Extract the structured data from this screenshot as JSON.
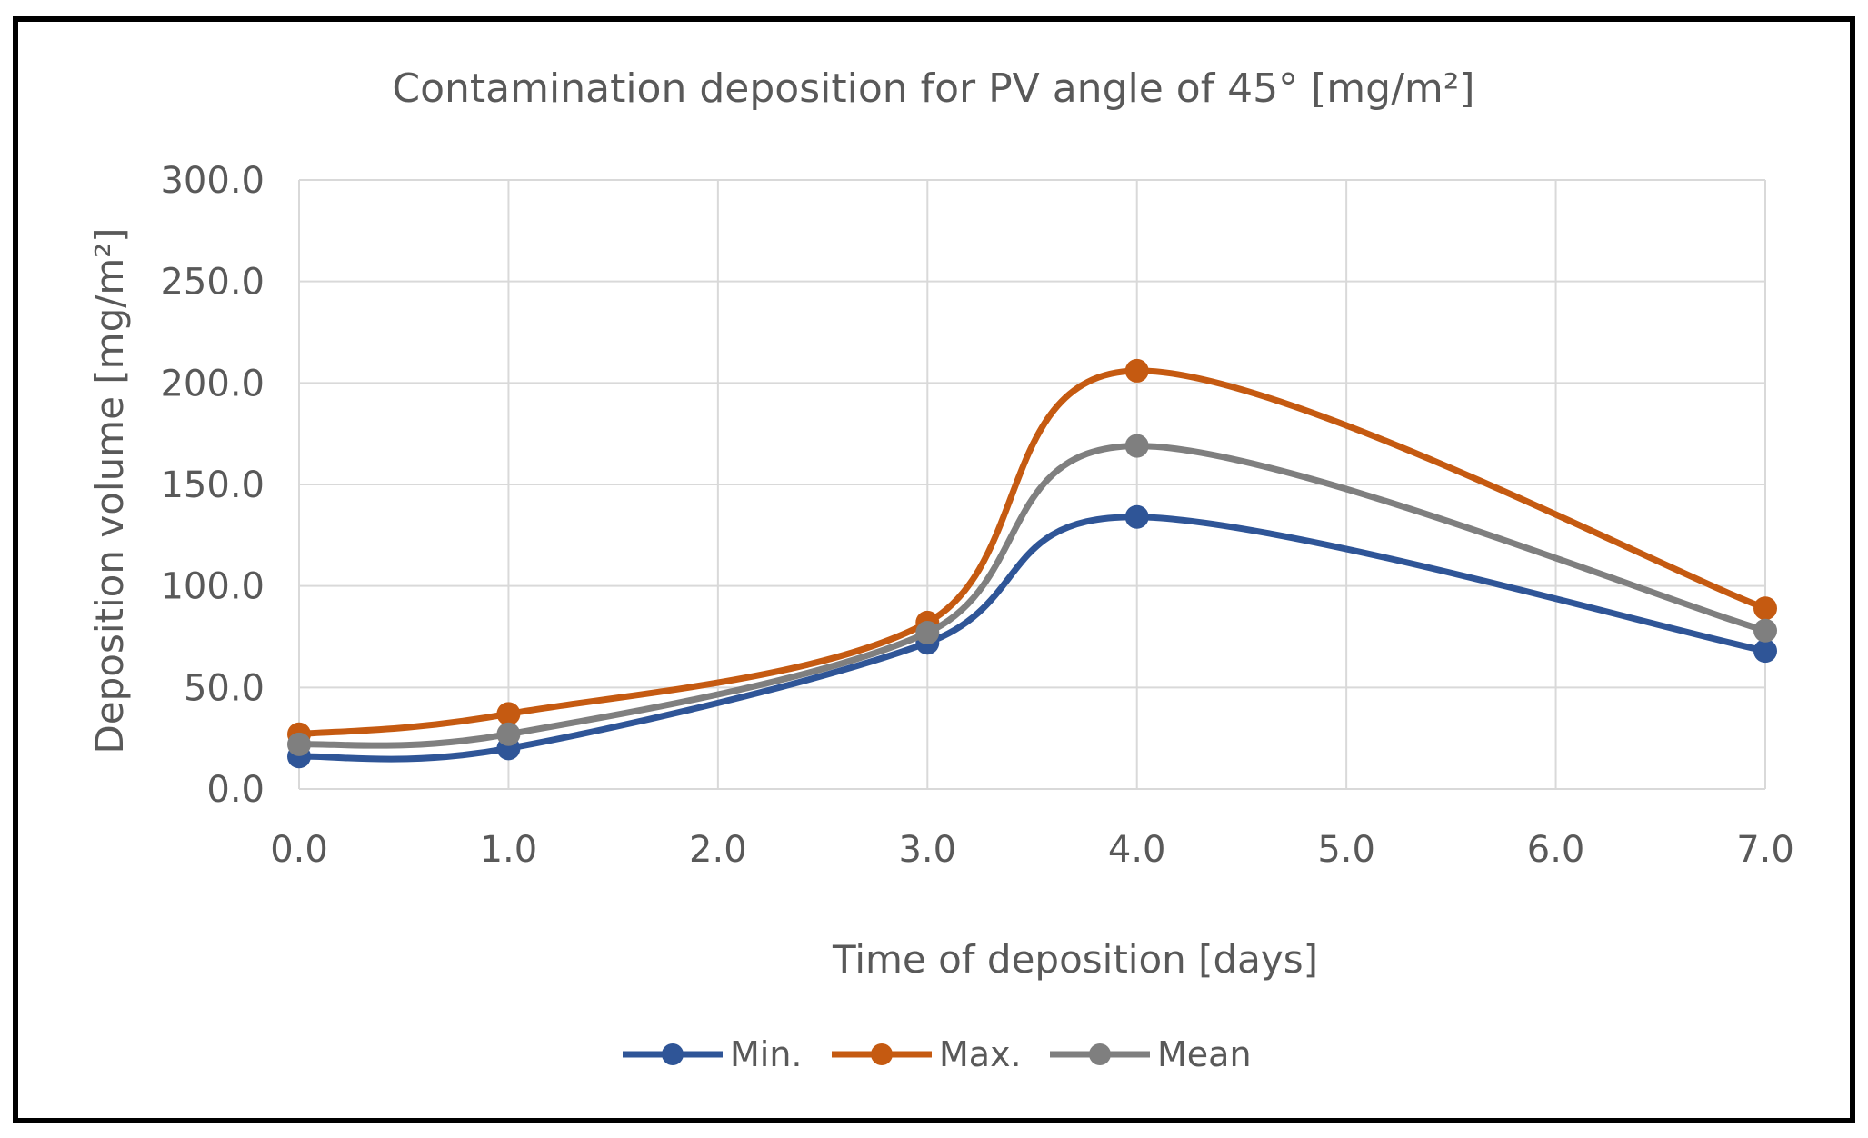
{
  "chart_data": {
    "type": "line",
    "title": "Contamination deposition for PV angle of 45° [mg/m²]",
    "xlabel": "Time of deposition [days]",
    "ylabel": "Deposition volume [mg/m²]",
    "xlim": [
      0,
      7
    ],
    "ylim": [
      0,
      300
    ],
    "xticks": [
      0,
      1,
      2,
      3,
      4,
      5,
      6,
      7
    ],
    "yticks": [
      0,
      50,
      100,
      150,
      200,
      250,
      300
    ],
    "xtick_labels": [
      "0.0",
      "1.0",
      "2.0",
      "3.0",
      "4.0",
      "5.0",
      "6.0",
      "7.0"
    ],
    "ytick_labels": [
      "0.0",
      "50.0",
      "100.0",
      "150.0",
      "200.0",
      "250.0",
      "300.0"
    ],
    "grid": true,
    "smooth": true,
    "legend_position": "bottom",
    "x": [
      0,
      1,
      3,
      4,
      7
    ],
    "series": [
      {
        "name": "Min.",
        "color": "#2f5597",
        "values": [
          16,
          20,
          72,
          134,
          68
        ]
      },
      {
        "name": "Max.",
        "color": "#c55a11",
        "values": [
          27,
          37,
          82,
          206,
          89
        ]
      },
      {
        "name": "Mean",
        "color": "#7f7f7f",
        "values": [
          22,
          27,
          77,
          169,
          78
        ]
      }
    ]
  }
}
